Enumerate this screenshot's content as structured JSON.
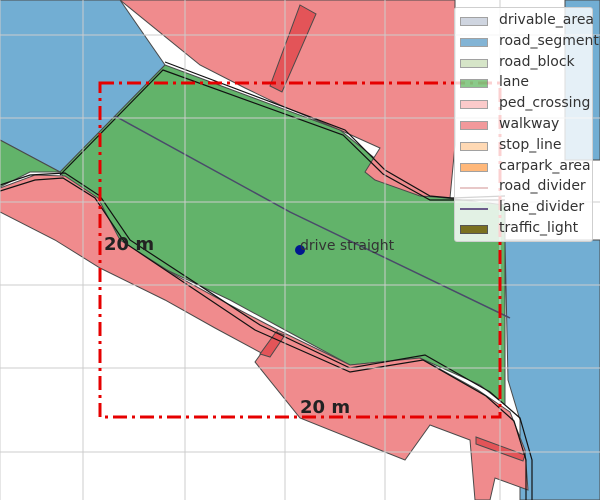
{
  "legend": {
    "items": [
      {
        "label": "drivable_area",
        "color": "#a9b4c8"
      },
      {
        "label": "road_segment",
        "color": "#1f77b4"
      },
      {
        "label": "road_block",
        "color": "#b5d19c"
      },
      {
        "label": "lane",
        "color": "#2ca02c"
      },
      {
        "label": "ped_crossing",
        "color": "#f8a0a0"
      },
      {
        "label": "walkway",
        "color": "#e8474a"
      },
      {
        "label": "stop_line",
        "color": "#ffbb78"
      },
      {
        "label": "carpark_area",
        "color": "#ff7f0e"
      },
      {
        "label": "road_divider",
        "color": "#e8c8c8"
      },
      {
        "label": "lane_divider",
        "color": "#6a5a8a"
      },
      {
        "label": "traffic_light",
        "color": "#7a7020"
      }
    ]
  },
  "map": {
    "scale_label_left": "20 m",
    "scale_label_bottom": "20 m",
    "ego_label": "drive straight",
    "colors": {
      "road_segment": "#72aed3",
      "lane": "#62b36a",
      "walkway": "#f08b8d",
      "walkway_dark": "#e35458",
      "lane_divider": "#4a4a6a",
      "box": "#e60000",
      "ego": "#00178f",
      "grid": "#cccccc"
    }
  }
}
